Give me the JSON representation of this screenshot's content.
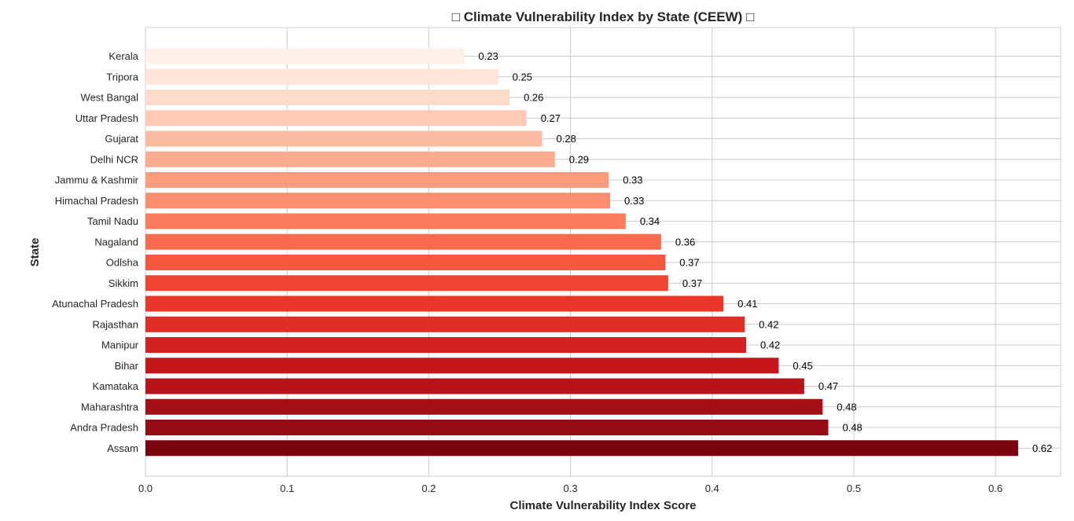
{
  "chart_data": {
    "type": "bar",
    "orientation": "horizontal",
    "title": "□ Climate Vulnerability Index by State (CEEW) □",
    "xlabel": "Climate Vulnerability Index Score",
    "ylabel": "State",
    "xlim": [
      0,
      0.646
    ],
    "x_ticks": [
      "0.0",
      "0.1",
      "0.2",
      "0.3",
      "0.4",
      "0.5",
      "0.6"
    ],
    "grid": true,
    "legend": "none",
    "categories": [
      "Kerala",
      "Tripora",
      "West Bangal",
      "Uttar  Pradesh",
      "Gujarat",
      "Delhi NCR",
      "Jammu & Kashmir",
      "Himachal Pradesh",
      "Tamil Nadu",
      "Nagaland",
      "Odlsha",
      "Sikkim",
      "Atunachal Pradesh",
      "Rajasthan",
      "Manipur",
      "Bihar",
      "Kamataka",
      "Maharashtra",
      "Andra Pradesh",
      "Assam"
    ],
    "values": [
      0.225,
      0.249,
      0.257,
      0.269,
      0.28,
      0.289,
      0.327,
      0.328,
      0.339,
      0.364,
      0.367,
      0.369,
      0.408,
      0.423,
      0.424,
      0.447,
      0.465,
      0.478,
      0.482,
      0.616
    ],
    "value_labels": [
      "0.23",
      "0.25",
      "0.26",
      "0.27",
      "0.28",
      "0.29",
      "0.33",
      "0.33",
      "0.34",
      "0.36",
      "0.37",
      "0.37",
      "0.41",
      "0.42",
      "0.42",
      "0.45",
      "0.47",
      "0.48",
      "0.48",
      "0.62"
    ],
    "colors": [
      "#fff0e9",
      "#fee5d9",
      "#fddbc9",
      "#fdcab3",
      "#fcbba1",
      "#fcab8f",
      "#fc9c7d",
      "#fc8d6d",
      "#fb7c5c",
      "#f96a4d",
      "#f6583e",
      "#f24633",
      "#ea362a",
      "#e02d27",
      "#d42121",
      "#c5161c",
      "#b71319",
      "#a70f16",
      "#960b14",
      "#7a0510"
    ]
  }
}
